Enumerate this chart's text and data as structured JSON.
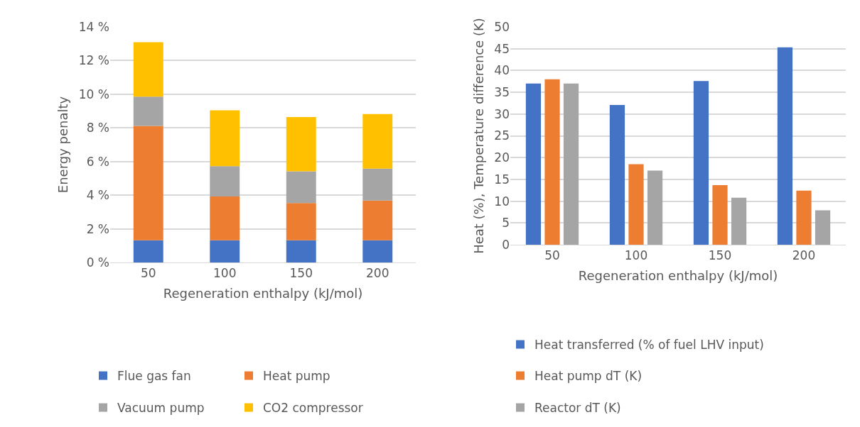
{
  "chart_data": [
    {
      "type": "bar",
      "stacked": true,
      "xlabel": "Regeneration enthalpy (kJ/mol)",
      "ylabel": "Energy penalty",
      "categories": [
        "50",
        "100",
        "150",
        "200"
      ],
      "series": [
        {
          "name": "Flue gas fan",
          "color": "#4472c4",
          "values": [
            1.32,
            1.32,
            1.32,
            1.32
          ]
        },
        {
          "name": "Heat pump",
          "color": "#ed7d31",
          "values": [
            6.8,
            2.6,
            2.21,
            2.36
          ]
        },
        {
          "name": "Vacuum pump",
          "color": "#a5a5a5",
          "values": [
            1.74,
            1.8,
            1.89,
            1.9
          ]
        },
        {
          "name": "CO2 compressor",
          "color": "#ffc000",
          "values": [
            3.23,
            3.32,
            3.22,
            3.24
          ]
        }
      ],
      "ylim": [
        0,
        14
      ],
      "yticks": [
        {
          "value": 0,
          "label": "0 %"
        },
        {
          "value": 2,
          "label": "2 %"
        },
        {
          "value": 4,
          "label": "4 %"
        },
        {
          "value": 6,
          "label": "6 %"
        },
        {
          "value": 8,
          "label": "8 %"
        },
        {
          "value": 10,
          "label": "10 %"
        },
        {
          "value": 12,
          "label": "12 %"
        },
        {
          "value": 14,
          "label": "14 %"
        }
      ],
      "grid": "y",
      "legend": "bottom"
    },
    {
      "type": "bar",
      "stacked": false,
      "xlabel": "Regeneration enthalpy (kJ/mol)",
      "ylabel": "Heat (%), Temperature difference (K)",
      "categories": [
        "50",
        "100",
        "150",
        "200"
      ],
      "series": [
        {
          "name": "Heat transferred (% of fuel LHV input)",
          "color": "#4472c4",
          "values": [
            37,
            32.1,
            37.6,
            45.3
          ]
        },
        {
          "name": "Heat pump dT (K)",
          "color": "#ed7d31",
          "values": [
            38,
            18.5,
            13.7,
            12.4
          ]
        },
        {
          "name": "Reactor dT (K)",
          "color": "#a5a5a5",
          "values": [
            37,
            17,
            10.8,
            7.9
          ]
        }
      ],
      "ylim": [
        0,
        50
      ],
      "yticks": [
        0,
        5,
        10,
        15,
        20,
        25,
        30,
        35,
        40,
        45,
        50
      ],
      "grid": "y",
      "legend": "bottom"
    }
  ]
}
